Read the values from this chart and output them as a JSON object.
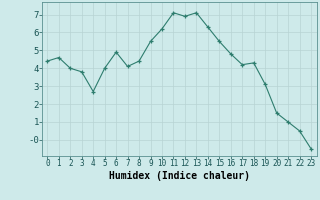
{
  "x": [
    0,
    1,
    2,
    3,
    4,
    5,
    6,
    7,
    8,
    9,
    10,
    11,
    12,
    13,
    14,
    15,
    16,
    17,
    18,
    19,
    20,
    21,
    22,
    23
  ],
  "y": [
    4.4,
    4.6,
    4.0,
    3.8,
    2.7,
    4.0,
    4.9,
    4.1,
    4.4,
    5.5,
    6.2,
    7.1,
    6.9,
    7.1,
    6.3,
    5.5,
    4.8,
    4.2,
    4.3,
    3.1,
    1.5,
    1.0,
    0.5,
    -0.5
  ],
  "line_color": "#2e7d6e",
  "marker": "+",
  "marker_size": 3,
  "bg_color": "#ceeaea",
  "grid_color": "#b8d4d4",
  "xlabel": "Humidex (Indice chaleur)",
  "xlabel_fontsize": 7,
  "xlabel_fontweight": "bold",
  "xtick_labels": [
    "0",
    "1",
    "2",
    "3",
    "4",
    "5",
    "6",
    "7",
    "8",
    "9",
    "10",
    "11",
    "12",
    "13",
    "14",
    "15",
    "16",
    "17",
    "18",
    "19",
    "20",
    "21",
    "22",
    "23"
  ],
  "ytick_labels": [
    "-0",
    "1",
    "2",
    "3",
    "4",
    "5",
    "6",
    "7"
  ],
  "ytick_values": [
    0,
    1,
    2,
    3,
    4,
    5,
    6,
    7
  ],
  "ylim": [
    -0.9,
    7.7
  ],
  "xlim": [
    -0.5,
    23.5
  ],
  "xtick_fontsize": 5.5,
  "ytick_fontsize": 6.5
}
